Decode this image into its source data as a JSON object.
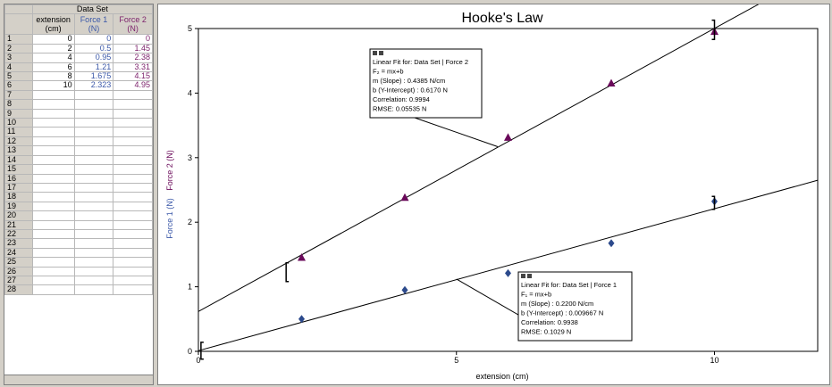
{
  "table": {
    "title": "Data Set",
    "columns": [
      {
        "name": "extension",
        "unit": "(cm)"
      },
      {
        "name": "Force 1",
        "unit": "(N)"
      },
      {
        "name": "Force 2",
        "unit": "(N)"
      }
    ],
    "row_numbers": [
      "1",
      "2",
      "3",
      "4",
      "5",
      "6",
      "7",
      "8",
      "9",
      "10",
      "11",
      "12",
      "13",
      "14",
      "15",
      "16",
      "17",
      "18",
      "19",
      "20",
      "21",
      "22",
      "23",
      "24",
      "25",
      "26",
      "27",
      "28"
    ],
    "rows": [
      [
        "0",
        "0",
        "0"
      ],
      [
        "2",
        "0.5",
        "1.45"
      ],
      [
        "4",
        "0.95",
        "2.38"
      ],
      [
        "6",
        "1.21",
        "3.31"
      ],
      [
        "8",
        "1.675",
        "4.15"
      ],
      [
        "10",
        "2.323",
        "4.95"
      ]
    ]
  },
  "chart_data": {
    "type": "scatter",
    "title": "Hooke's Law",
    "xlabel": "extension (cm)",
    "ylabel_parts": [
      "Force 1 (N)",
      "Force 2 (N)"
    ],
    "xlim": [
      0,
      12
    ],
    "ylim": [
      0,
      5
    ],
    "x_ticks": [
      "0",
      "5",
      "10"
    ],
    "x_tick_values": [
      0,
      5,
      10
    ],
    "y_ticks": [
      "0",
      "1",
      "2",
      "3",
      "4",
      "5"
    ],
    "y_tick_values": [
      0,
      1,
      2,
      3,
      4,
      5
    ],
    "series": [
      {
        "name": "Force 1",
        "color": "#2c4a8c",
        "marker": "diamond",
        "x": [
          2,
          4,
          6,
          8,
          10
        ],
        "y": [
          0.5,
          0.95,
          1.21,
          1.675,
          2.323
        ],
        "fit": {
          "slope": 0.22,
          "intercept": 0.009667
        }
      },
      {
        "name": "Force 2",
        "color": "#6a0a5a",
        "marker": "triangle",
        "x": [
          2,
          4,
          6,
          8,
          10
        ],
        "y": [
          1.45,
          2.38,
          3.31,
          4.15,
          4.95
        ],
        "fit": {
          "slope": 0.4385,
          "intercept": 0.617
        }
      }
    ],
    "fit_boxes": [
      {
        "series": "Force 2",
        "lines": [
          "Linear Fit for: Data Set | Force 2",
          "F₂ = mx+b",
          "m (Slope) : 0.4385 N/cm",
          "b (Y-Intercept) : 0.6170 N",
          "Correlation: 0.9994",
          "RMSE: 0.05535 N"
        ]
      },
      {
        "series": "Force 1",
        "lines": [
          "Linear Fit for: Data Set | Force 1",
          "F₁ = mx+b",
          "m (Slope) : 0.2200 N/cm",
          "b (Y-Intercept) : 0.009667 N",
          "Correlation: 0.9938",
          "RMSE: 0.1029 N"
        ]
      }
    ]
  }
}
